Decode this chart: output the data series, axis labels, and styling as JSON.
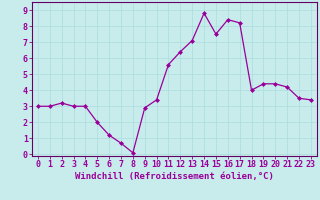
{
  "x": [
    0,
    1,
    2,
    3,
    4,
    5,
    6,
    7,
    8,
    9,
    10,
    11,
    12,
    13,
    14,
    15,
    16,
    17,
    18,
    19,
    20,
    21,
    22,
    23
  ],
  "y": [
    3.0,
    3.0,
    3.2,
    3.0,
    3.0,
    2.0,
    1.2,
    0.7,
    0.1,
    2.9,
    3.4,
    5.6,
    6.4,
    7.1,
    8.8,
    7.5,
    8.4,
    8.2,
    4.0,
    4.4,
    4.4,
    4.2,
    3.5,
    3.4
  ],
  "line_color": "#990099",
  "marker": "D",
  "marker_size": 2.0,
  "linewidth": 0.9,
  "xlabel": "Windchill (Refroidissement éolien,°C)",
  "ylabel_ticks": [
    0,
    1,
    2,
    3,
    4,
    5,
    6,
    7,
    8,
    9
  ],
  "xlim": [
    -0.5,
    23.5
  ],
  "ylim": [
    -0.1,
    9.5
  ],
  "background_color": "#c8ecec",
  "grid_color": "#aadddd",
  "spine_color": "#660066",
  "tick_color": "#990099",
  "label_color": "#990099",
  "xlabel_fontsize": 6.5,
  "tick_fontsize": 6.0
}
